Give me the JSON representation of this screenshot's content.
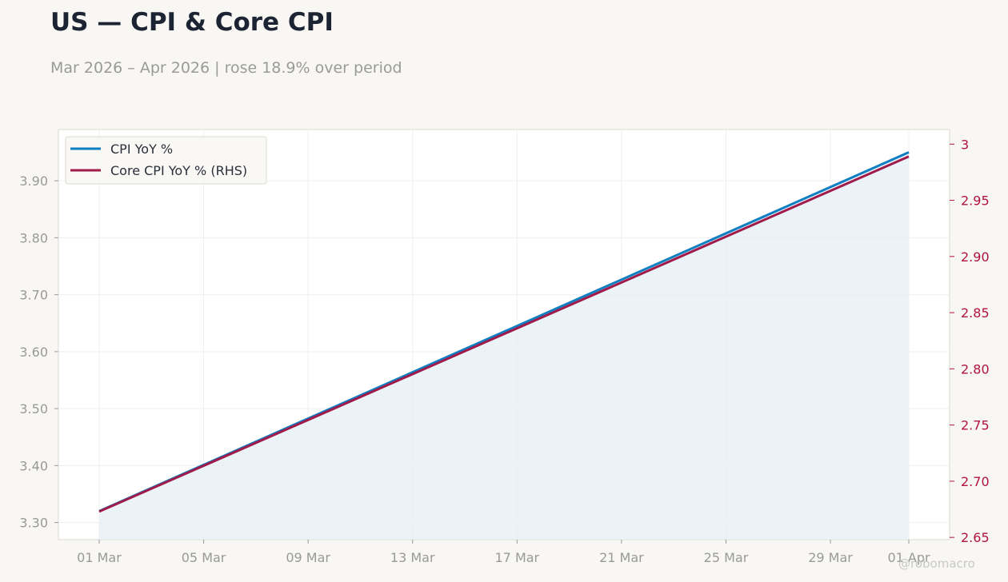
{
  "header": {
    "title": "US — CPI & Core CPI",
    "subtitle": "Mar 2026 – Apr 2026 | rose 18.9% over period"
  },
  "watermark": "@robomacro",
  "chart_data": {
    "type": "line",
    "title": "US — CPI & Core CPI",
    "subtitle": "Mar 2026 – Apr 2026 | rose 18.9% over period",
    "x_ticks": [
      "01 Mar",
      "05 Mar",
      "09 Mar",
      "13 Mar",
      "17 Mar",
      "21 Mar",
      "25 Mar",
      "29 Mar",
      "01 Apr"
    ],
    "x_tick_days": [
      0,
      4,
      8,
      12,
      16,
      20,
      24,
      28,
      31
    ],
    "x_range": [
      "01 Mar",
      "01 Apr"
    ],
    "left_axis": {
      "ticks": [
        "3.30",
        "3.40",
        "3.50",
        "3.60",
        "3.70",
        "3.80",
        "3.90"
      ],
      "ylim": [
        3.27,
        3.99
      ],
      "color": "#999999"
    },
    "right_axis": {
      "ticks": [
        "2.65",
        "2.70",
        "2.75",
        "2.80",
        "2.85",
        "2.90",
        "2.95",
        "3"
      ],
      "ylim": [
        2.648,
        3.013
      ],
      "color": "#b0133f"
    },
    "series": [
      {
        "name": "CPI YoY %",
        "axis": "left",
        "color": "#0f7fc1",
        "fill": "#e6f0f8",
        "x": [
          "01 Mar",
          "01 Apr"
        ],
        "values": [
          3.32,
          3.95
        ]
      },
      {
        "name": "Core CPI YoY % (RHS)",
        "axis": "right",
        "color": "#a01a4a",
        "x": [
          "01 Mar",
          "01 Apr"
        ],
        "values": [
          2.673,
          2.989
        ]
      }
    ],
    "grid": true,
    "legend": "top-left"
  }
}
